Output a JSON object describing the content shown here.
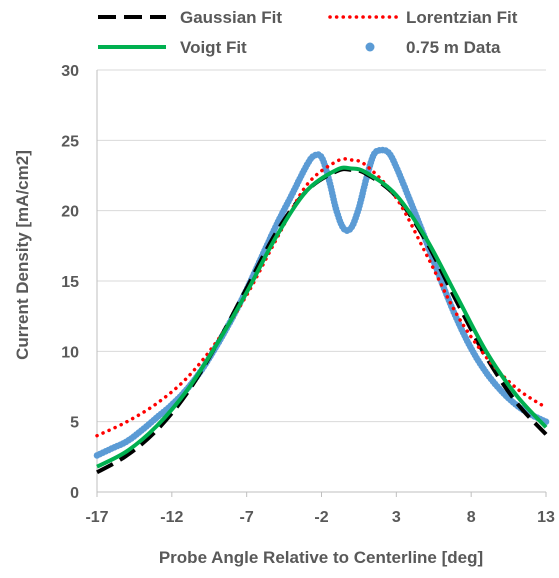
{
  "chart_data": {
    "type": "line",
    "xlabel": "Probe Angle Relative to Centerline [deg]",
    "ylabel": "Current Density [mA/cm2]",
    "xlim": [
      -17,
      13
    ],
    "ylim": [
      0,
      30
    ],
    "xticks": [
      -17,
      -12,
      -7,
      -2,
      3,
      8,
      13
    ],
    "yticks": [
      0,
      5,
      10,
      15,
      20,
      25,
      30
    ],
    "grid": "horizontal",
    "legend": "top",
    "series": [
      {
        "name": "Gaussian Fit",
        "style": "dashed",
        "color": "#000000",
        "x": [
          -17,
          -15,
          -13,
          -11,
          -9,
          -7,
          -5,
          -3,
          -1,
          0,
          1,
          3,
          5,
          7,
          9,
          11,
          13
        ],
        "y": [
          1.4,
          2.6,
          4.4,
          7.0,
          10.5,
          14.5,
          18.5,
          21.4,
          22.8,
          22.9,
          22.6,
          21.0,
          17.8,
          13.6,
          9.6,
          6.4,
          4.1
        ]
      },
      {
        "name": "Lorentzian Fit",
        "style": "dotted",
        "color": "#ff0000",
        "x": [
          -17,
          -15,
          -13,
          -11,
          -9,
          -7,
          -5,
          -3,
          -1,
          0,
          1,
          3,
          5,
          7,
          9,
          11,
          13
        ],
        "y": [
          4.0,
          5.0,
          6.3,
          8.1,
          10.7,
          14.0,
          18.0,
          21.8,
          23.5,
          23.6,
          23.2,
          20.9,
          16.9,
          12.7,
          9.6,
          7.4,
          6.0
        ]
      },
      {
        "name": "Voigt Fit",
        "style": "solid",
        "color": "#00b050",
        "x": [
          -17,
          -15,
          -13,
          -11,
          -9,
          -7,
          -5,
          -3,
          -1,
          0,
          1,
          3,
          5,
          7,
          9,
          11,
          13
        ],
        "y": [
          1.8,
          2.9,
          4.7,
          7.2,
          10.5,
          14.2,
          18.2,
          21.4,
          22.9,
          23.0,
          22.7,
          21.1,
          18.0,
          14.0,
          10.0,
          6.9,
          4.6
        ]
      },
      {
        "name": "0.75 m Data",
        "style": "markers",
        "color": "#5b9bd5",
        "x": [
          -17,
          -16,
          -15,
          -14,
          -13,
          -12,
          -11,
          -10,
          -9,
          -8,
          -7,
          -6,
          -5,
          -4,
          -3,
          -2.5,
          -2,
          -1.5,
          -1,
          -0.5,
          0,
          0.5,
          1,
          1.5,
          2,
          2.5,
          3,
          4,
          5,
          6,
          7,
          8,
          9,
          10,
          11,
          12,
          13
        ],
        "y": [
          2.6,
          3.1,
          3.6,
          4.4,
          5.3,
          6.2,
          7.3,
          8.7,
          10.4,
          12.3,
          14.4,
          16.7,
          19.0,
          21.1,
          23.2,
          23.9,
          23.8,
          22.2,
          20.0,
          18.7,
          18.8,
          20.2,
          22.3,
          24.0,
          24.3,
          24.1,
          23.1,
          20.5,
          17.8,
          15.0,
          12.4,
          10.2,
          8.5,
          7.2,
          6.2,
          5.5,
          5.0
        ]
      }
    ]
  }
}
